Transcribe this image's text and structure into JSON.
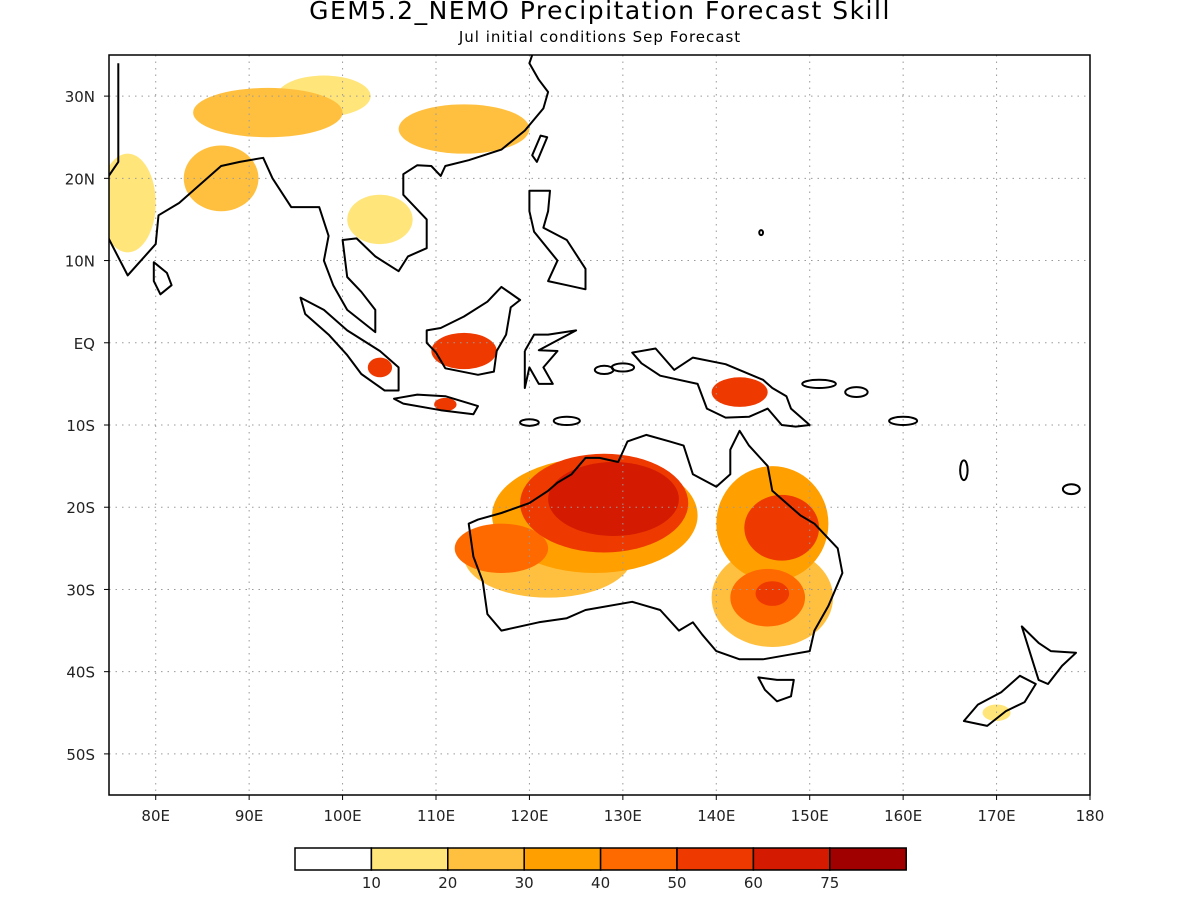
{
  "title": "GEM5.2_NEMO Precipitation Forecast Skill",
  "subtitle": "Jul initial conditions   Sep Forecast",
  "map": {
    "lon_range": [
      75,
      180
    ],
    "lat_range": [
      -55,
      35
    ],
    "x_ticks": [
      {
        "lon": 80,
        "label": "80E"
      },
      {
        "lon": 90,
        "label": "90E"
      },
      {
        "lon": 100,
        "label": "100E"
      },
      {
        "lon": 110,
        "label": "110E"
      },
      {
        "lon": 120,
        "label": "120E"
      },
      {
        "lon": 130,
        "label": "130E"
      },
      {
        "lon": 140,
        "label": "140E"
      },
      {
        "lon": 150,
        "label": "150E"
      },
      {
        "lon": 160,
        "label": "160E"
      },
      {
        "lon": 170,
        "label": "170E"
      },
      {
        "lon": 180,
        "label": "180"
      }
    ],
    "y_ticks": [
      {
        "lat": 30,
        "label": "30N"
      },
      {
        "lat": 20,
        "label": "20N"
      },
      {
        "lat": 10,
        "label": "10N"
      },
      {
        "lat": 0,
        "label": "EQ"
      },
      {
        "lat": -10,
        "label": "10S"
      },
      {
        "lat": -20,
        "label": "20S"
      },
      {
        "lat": -30,
        "label": "30S"
      },
      {
        "lat": -40,
        "label": "40S"
      },
      {
        "lat": -50,
        "label": "50S"
      }
    ],
    "grid": true
  },
  "colorbar": {
    "colors": [
      "#ffffff",
      "#ffe57a",
      "#ffc040",
      "#ffa000",
      "#ff6a00",
      "#ee3a00",
      "#d41a00",
      "#a00000"
    ],
    "labels": [
      "10",
      "20",
      "30",
      "40",
      "50",
      "60",
      "75"
    ]
  },
  "skill_regions": [
    {
      "name": "north-australia-peak",
      "lon": 129,
      "lat": -19,
      "rx": 7,
      "ry": 4.5,
      "level": 6
    },
    {
      "name": "north-australia-core",
      "lon": 128,
      "lat": -19.5,
      "rx": 9,
      "ry": 6,
      "level": 5
    },
    {
      "name": "north-australia-outer",
      "lon": 127,
      "lat": -21,
      "rx": 11,
      "ry": 7,
      "level": 3
    },
    {
      "name": "west-australia",
      "lon": 117,
      "lat": -25,
      "rx": 5,
      "ry": 3,
      "level": 4
    },
    {
      "name": "west-central-australia",
      "lon": 122,
      "lat": -26,
      "rx": 9,
      "ry": 5,
      "level": 2
    },
    {
      "name": "queensland-north",
      "lon": 147,
      "lat": -22.5,
      "rx": 4,
      "ry": 4,
      "level": 5
    },
    {
      "name": "queensland-outer",
      "lon": 146,
      "lat": -22,
      "rx": 6,
      "ry": 7,
      "level": 3
    },
    {
      "name": "nsw-peak",
      "lon": 146,
      "lat": -30.5,
      "rx": 1.8,
      "ry": 1.5,
      "level": 5
    },
    {
      "name": "nsw-core",
      "lon": 145.5,
      "lat": -31,
      "rx": 4,
      "ry": 3.5,
      "level": 4
    },
    {
      "name": "nsw-outer",
      "lon": 146,
      "lat": -31,
      "rx": 6.5,
      "ry": 6,
      "level": 2
    },
    {
      "name": "borneo-south",
      "lon": 113,
      "lat": -1,
      "rx": 3.5,
      "ry": 2.2,
      "level": 5
    },
    {
      "name": "papua",
      "lon": 142.5,
      "lat": -6,
      "rx": 3,
      "ry": 1.8,
      "level": 5
    },
    {
      "name": "sumatra-south",
      "lon": 104,
      "lat": -3,
      "rx": 1.3,
      "ry": 1.2,
      "level": 5
    },
    {
      "name": "java",
      "lon": 111,
      "lat": -7.5,
      "rx": 1.2,
      "ry": 0.8,
      "level": 5
    },
    {
      "name": "india-northeast",
      "lon": 87,
      "lat": 20,
      "rx": 4,
      "ry": 4,
      "level": 2
    },
    {
      "name": "india-west",
      "lon": 77,
      "lat": 17,
      "rx": 3,
      "ry": 6,
      "level": 1
    },
    {
      "name": "himalaya",
      "lon": 92,
      "lat": 28,
      "rx": 8,
      "ry": 3,
      "level": 2
    },
    {
      "name": "tibet-plateau",
      "lon": 98,
      "lat": 30,
      "rx": 5,
      "ry": 2.5,
      "level": 1
    },
    {
      "name": "south-china",
      "lon": 113,
      "lat": 26,
      "rx": 7,
      "ry": 3,
      "level": 2
    },
    {
      "name": "indochina",
      "lon": 104,
      "lat": 15,
      "rx": 3.5,
      "ry": 3,
      "level": 1
    },
    {
      "name": "new-zealand-south",
      "lon": 170,
      "lat": -45,
      "rx": 1.5,
      "ry": 1,
      "level": 1
    }
  ]
}
